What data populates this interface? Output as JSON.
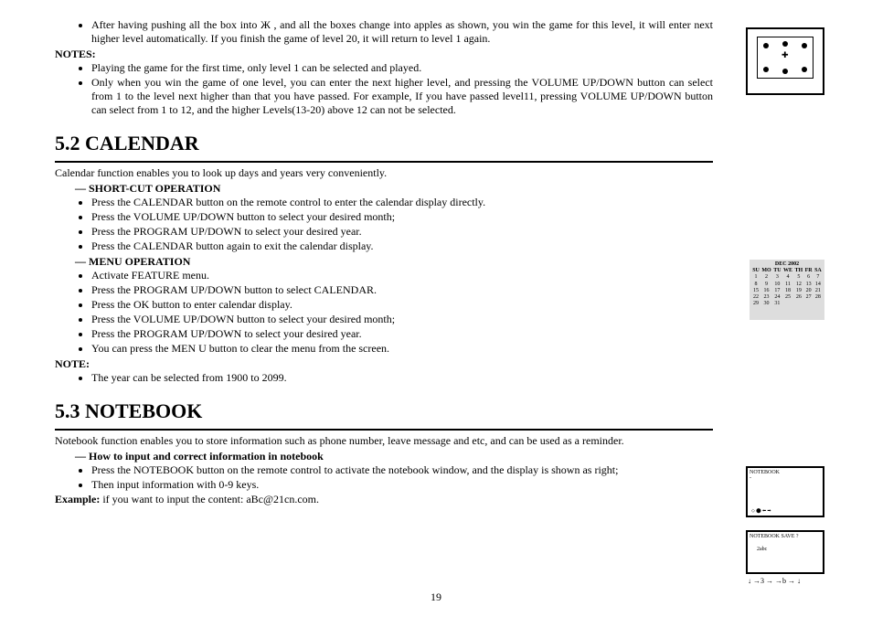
{
  "top": {
    "bullet1": "After having pushing all the box into Ж , and all the boxes change into apples as shown, you win the game for this level, it will enter next higher level automatically. If you finish the game of level 20, it will return to level 1 again.",
    "notes_label": "NOTES:",
    "notes": [
      "Playing the game for the first time, only level 1 can be selected and played.",
      "Only when you win the game of one level, you can enter the next higher level, and pressing the VOLUME UP/DOWN button can select from 1 to the level next higher than that you have passed. For example, If you have passed level11, pressing VOLUME UP/DOWN button can select from 1 to 12, and the higher Levels(13-20) above 12 can not be selected."
    ]
  },
  "calendar": {
    "heading": "5.2 CALENDAR",
    "intro": "Calendar function enables you to look up days and years very conveniently.",
    "shortcut_label": "—   SHORT-CUT OPERATION",
    "shortcut": [
      "Press the CALENDAR button on the remote control to enter the calendar display directly.",
      "Press the VOLUME UP/DOWN button to select your desired month;",
      "Press the PROGRAM UP/DOWN to select your desired year.",
      "Press the CALENDAR button again to exit the calendar display."
    ],
    "menu_label": "—   MENU OPERATION",
    "menu": [
      "Activate FEATURE menu.",
      "Press the PROGRAM UP/DOWN button to select CALENDAR.",
      "Press the OK button to enter calendar display.",
      "Press the VOLUME UP/DOWN button to select your desired month;",
      "Press the PROGRAM UP/DOWN to select your desired year.",
      "You can press the MEN U button to clear the menu from the screen."
    ],
    "note_label": "NOTE:",
    "note": "The year can be selected from 1900 to 2099."
  },
  "notebook": {
    "heading": "5.3 NOTEBOOK",
    "intro": "Notebook function enables you to store information such as phone number, leave message and etc, and can be used as a reminder.",
    "howto_label": "—   How to input and correct information in notebook",
    "howto": [
      "Press the NOTEBOOK button on the remote control to activate the notebook window, and the display is shown as right;",
      "Then input information with 0-9 keys."
    ],
    "example_label": "Example:",
    "example_text": " if you want to input the content: aBc@21cn.com."
  },
  "figures": {
    "calendar": {
      "title": "DEC    2002",
      "days": [
        "SU",
        "MO",
        "TU",
        "WE",
        "TH",
        "FR",
        "SA"
      ],
      "rows": [
        [
          "1",
          "2",
          "3",
          "4",
          "5",
          "6",
          "7"
        ],
        [
          "8",
          "9",
          "10",
          "11",
          "12",
          "13",
          "14"
        ],
        [
          "15",
          "16",
          "17",
          "18",
          "19",
          "20",
          "21"
        ],
        [
          "22",
          "23",
          "24",
          "25",
          "26",
          "27",
          "28"
        ],
        [
          "29",
          "30",
          "31",
          "",
          "",
          "",
          ""
        ]
      ]
    },
    "nb1_title": "NOTEBOOK",
    "nb2_title": "NOTEBOOK  SAVE ?",
    "nb2_body": "2abc"
  },
  "page_number": "19"
}
